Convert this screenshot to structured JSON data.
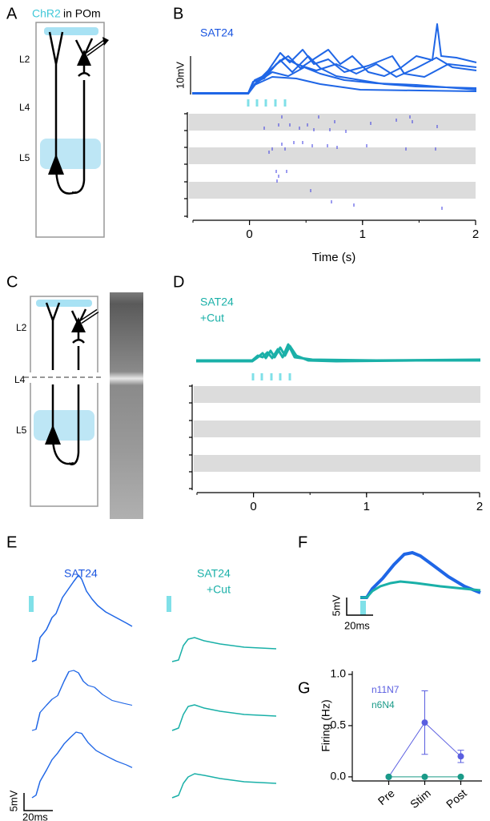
{
  "panel_labels": [
    "A",
    "B",
    "C",
    "D",
    "E",
    "F",
    "G"
  ],
  "panel_a": {
    "stain": "ChR2",
    "region": "in POm",
    "layers": [
      "L2",
      "L4",
      "L5"
    ]
  },
  "panel_b": {
    "condition": "SAT24",
    "scale_bar": "10mV",
    "xlim": [
      -0.5,
      2
    ],
    "xticks": [
      0,
      1,
      2
    ],
    "xlabel": "Time (s)"
  },
  "panel_c": {
    "layers": [
      "L2",
      "L4",
      "L5"
    ]
  },
  "panel_d": {
    "condition": [
      "SAT24",
      "+Cut"
    ],
    "xlim": [
      -0.5,
      2
    ],
    "xticks": [
      0,
      1,
      2
    ]
  },
  "panel_e": {
    "left_condition": "SAT24",
    "right_condition": [
      "SAT24",
      "+Cut"
    ],
    "scale_bars": [
      "5mV",
      "20ms"
    ]
  },
  "panel_f": {
    "scale_bars": [
      "5mV",
      "20ms"
    ]
  },
  "chart_data": {
    "type": "line",
    "ylabel": "Firing (Hz)",
    "categories": [
      "Pre",
      "Stim",
      "Post"
    ],
    "series": [
      {
        "name": "n11N7",
        "color": "#5a5ee0",
        "values": [
          0,
          0.53,
          0.2
        ],
        "errors": [
          0,
          0.31,
          0.06
        ]
      },
      {
        "name": "n6N4",
        "color": "#1a9a88",
        "values": [
          0,
          0,
          0
        ]
      }
    ],
    "ylim": [
      -0.04,
      1.0
    ],
    "yticks": [
      {
        "value": 0,
        "label": "0.0"
      },
      {
        "value": 0.5,
        "label": "0.5"
      },
      {
        "value": 1,
        "label": "1.0"
      }
    ]
  }
}
